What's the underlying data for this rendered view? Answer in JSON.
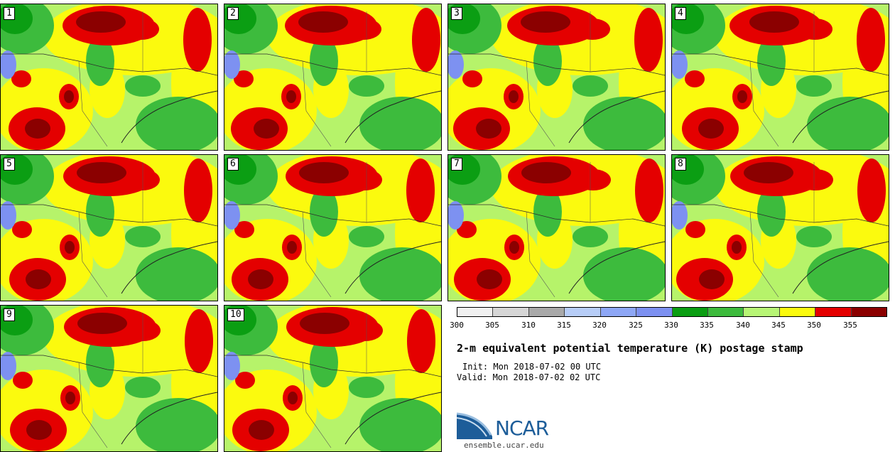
{
  "panels": [
    {
      "label": "1"
    },
    {
      "label": "2"
    },
    {
      "label": "3"
    },
    {
      "label": "4"
    },
    {
      "label": "5"
    },
    {
      "label": "6"
    },
    {
      "label": "7"
    },
    {
      "label": "8"
    },
    {
      "label": "9"
    },
    {
      "label": "10"
    }
  ],
  "colorbar": {
    "colors": [
      "#f0f0f0",
      "#d6d6d6",
      "#a9a9a9",
      "#b7cdf7",
      "#8ea7f6",
      "#7d91f1",
      "#0b9e13",
      "#3dbb3d",
      "#b7f575",
      "#fbfa0e",
      "#e40000",
      "#8b0000"
    ],
    "ticks": [
      "300",
      "305",
      "310",
      "315",
      "320",
      "325",
      "330",
      "335",
      "340",
      "345",
      "350",
      "355"
    ]
  },
  "title": "2-m equivalent potential temperature (K) postage stamp",
  "init": "Init: Mon 2018-07-02 00 UTC",
  "valid": "Valid: Mon 2018-07-02 02 UTC",
  "logo": {
    "name": "NCAR",
    "url": "ensemble.ucar.edu"
  },
  "palette": {
    "light_green": "#b6f36a",
    "green": "#3dbb3d",
    "dark_green": "#0b9e13",
    "yellow": "#fbfa0e",
    "red": "#e40000",
    "dark_red": "#8b0000",
    "blue": "#7d91f1"
  }
}
